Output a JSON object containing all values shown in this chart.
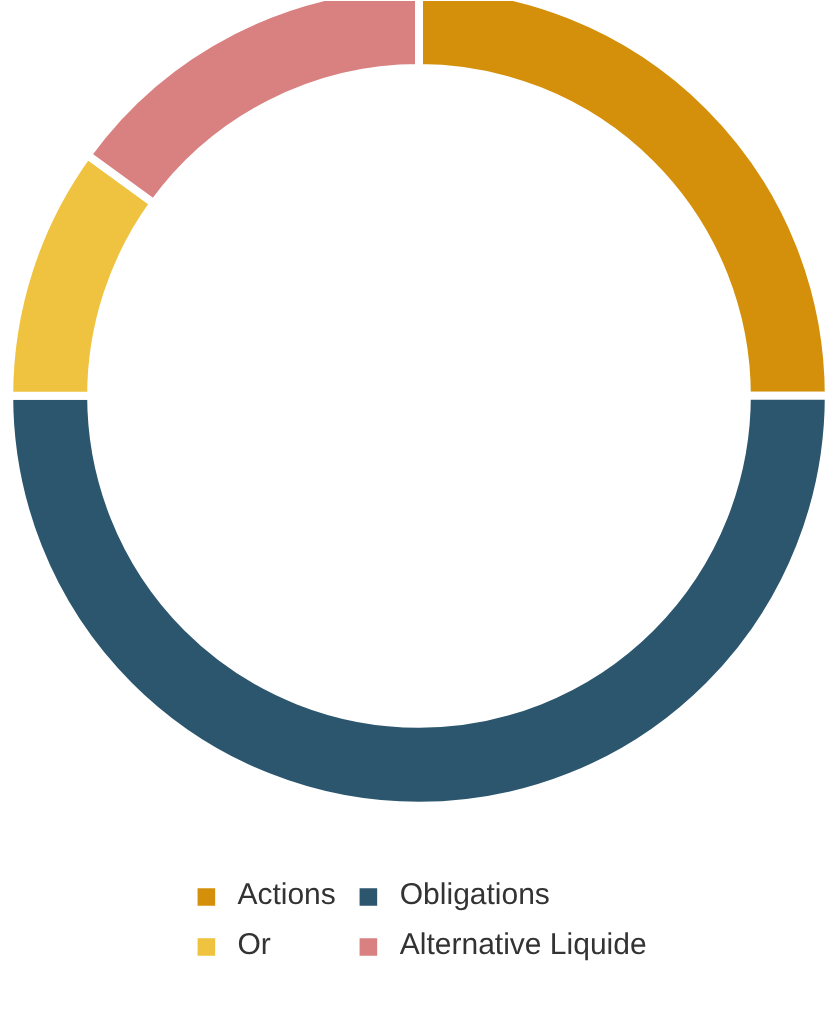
{
  "chart_data": {
    "type": "donut",
    "categories": [
      "Actions",
      "Obligations",
      "Or",
      "Alternative Liquide"
    ],
    "values": [
      25,
      50,
      10,
      15
    ],
    "colors": [
      "#d4900a",
      "#2b566e",
      "#efc23f",
      "#d98080"
    ],
    "legend": "bottom"
  }
}
